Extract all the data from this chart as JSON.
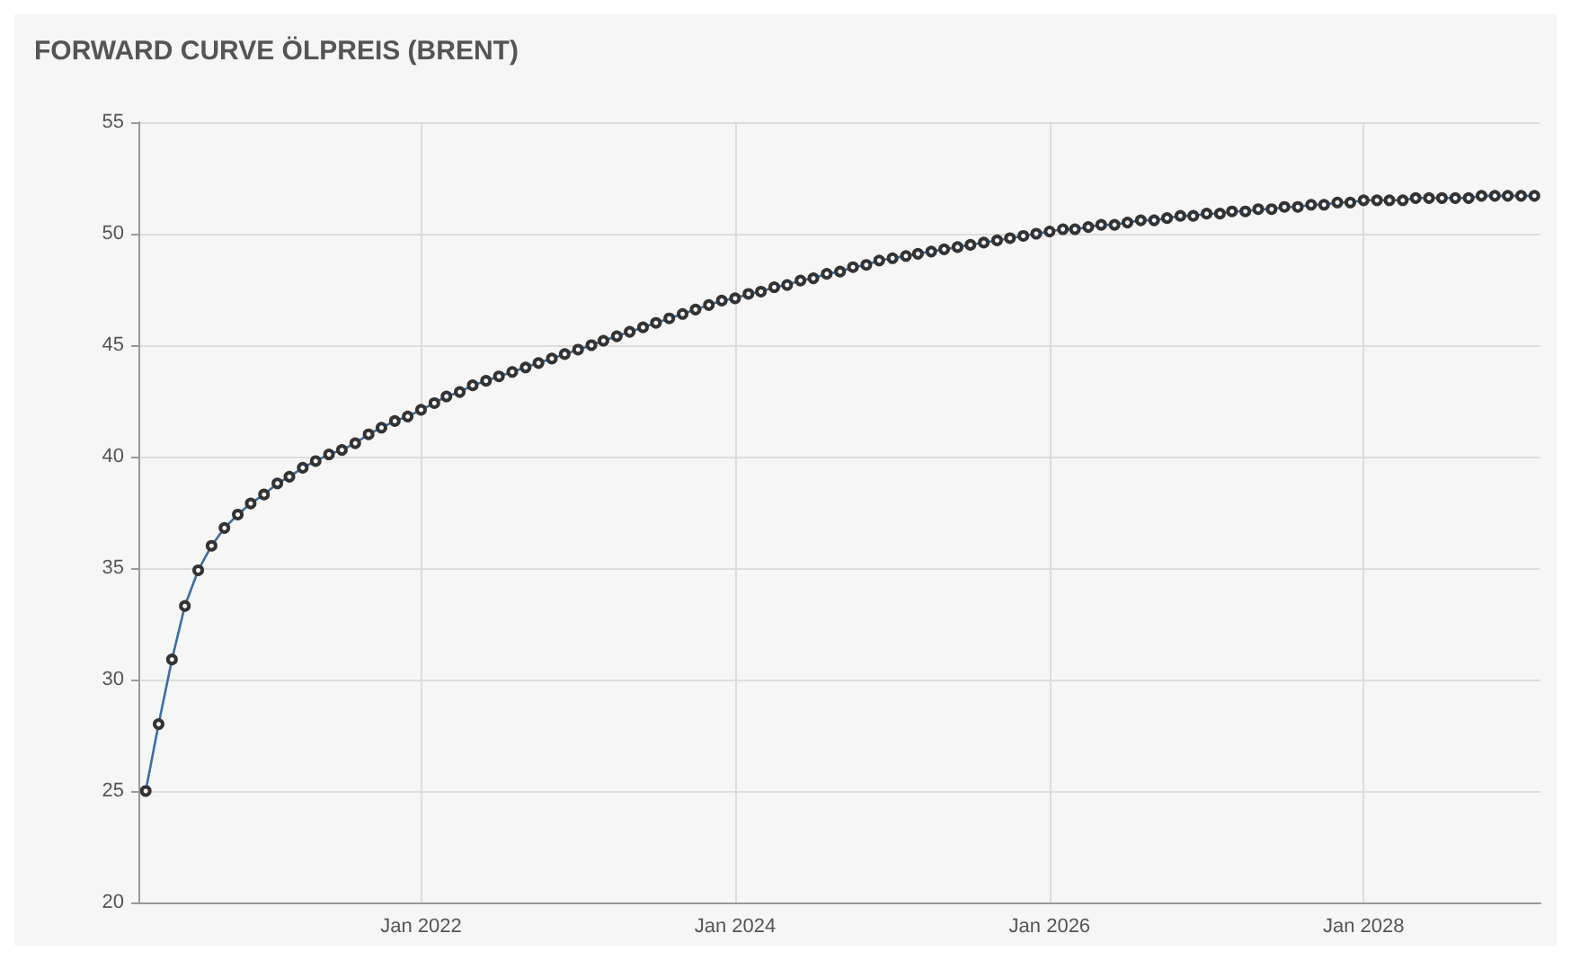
{
  "chart_data": {
    "type": "line",
    "title": "FORWARD CURVE ÖLPREIS (BRENT)",
    "x": [
      "2020-04",
      "2020-05",
      "2020-06",
      "2020-07",
      "2020-08",
      "2020-09",
      "2020-10",
      "2020-11",
      "2020-12",
      "2021-01",
      "2021-02",
      "2021-03",
      "2021-04",
      "2021-05",
      "2021-06",
      "2021-07",
      "2021-08",
      "2021-09",
      "2021-10",
      "2021-11",
      "2021-12",
      "2022-01",
      "2022-02",
      "2022-03",
      "2022-04",
      "2022-05",
      "2022-06",
      "2022-07",
      "2022-08",
      "2022-09",
      "2022-10",
      "2022-11",
      "2022-12",
      "2023-01",
      "2023-02",
      "2023-03",
      "2023-04",
      "2023-05",
      "2023-06",
      "2023-07",
      "2023-08",
      "2023-09",
      "2023-10",
      "2023-11",
      "2023-12",
      "2024-01",
      "2024-02",
      "2024-03",
      "2024-04",
      "2024-05",
      "2024-06",
      "2024-07",
      "2024-08",
      "2024-09",
      "2024-10",
      "2024-11",
      "2024-12",
      "2025-01",
      "2025-02",
      "2025-03",
      "2025-04",
      "2025-05",
      "2025-06",
      "2025-07",
      "2025-08",
      "2025-09",
      "2025-10",
      "2025-11",
      "2025-12",
      "2026-01",
      "2026-02",
      "2026-03",
      "2026-04",
      "2026-05",
      "2026-06",
      "2026-07",
      "2026-08",
      "2026-09",
      "2026-10",
      "2026-11",
      "2026-12",
      "2027-01",
      "2027-02",
      "2027-03",
      "2027-04",
      "2027-05",
      "2027-06",
      "2027-07",
      "2027-08",
      "2027-09",
      "2027-10",
      "2027-11",
      "2027-12",
      "2028-01",
      "2028-02",
      "2028-03",
      "2028-04",
      "2028-05",
      "2028-06",
      "2028-07",
      "2028-08",
      "2028-09",
      "2028-10",
      "2028-11",
      "2028-12",
      "2029-01",
      "2029-02"
    ],
    "series": [
      {
        "color": "#3a6ea5",
        "values": [
          25.0,
          28.0,
          30.9,
          33.3,
          34.9,
          36.0,
          36.8,
          37.4,
          37.9,
          38.3,
          38.8,
          39.1,
          39.5,
          39.8,
          40.1,
          40.3,
          40.6,
          41.0,
          41.3,
          41.6,
          41.8,
          42.1,
          42.4,
          42.7,
          42.9,
          43.2,
          43.4,
          43.6,
          43.8,
          44.0,
          44.2,
          44.4,
          44.6,
          44.8,
          45.0,
          45.2,
          45.4,
          45.6,
          45.8,
          46.0,
          46.2,
          46.4,
          46.6,
          46.8,
          47.0,
          47.1,
          47.3,
          47.4,
          47.6,
          47.7,
          47.9,
          48.0,
          48.2,
          48.3,
          48.5,
          48.6,
          48.8,
          48.9,
          49.0,
          49.1,
          49.2,
          49.3,
          49.4,
          49.5,
          49.6,
          49.7,
          49.8,
          49.9,
          50.0,
          50.1,
          50.2,
          50.2,
          50.3,
          50.4,
          50.4,
          50.5,
          50.6,
          50.6,
          50.7,
          50.8,
          50.8,
          50.9,
          50.9,
          51.0,
          51.0,
          51.1,
          51.1,
          51.2,
          51.2,
          51.3,
          51.3,
          51.4,
          51.4,
          51.5,
          51.5,
          51.5,
          51.5,
          51.6,
          51.6,
          51.6,
          51.6,
          51.6,
          51.7,
          51.7,
          51.7,
          51.7,
          51.7
        ]
      }
    ],
    "xlim": [
      "2020-03-15",
      "2029-02-15"
    ],
    "xticks": [
      {
        "value": "2022-01",
        "label": "Jan 2022"
      },
      {
        "value": "2024-01",
        "label": "Jan 2024"
      },
      {
        "value": "2026-01",
        "label": "Jan 2026"
      },
      {
        "value": "2028-01",
        "label": "Jan 2028"
      }
    ],
    "ylim": [
      20,
      55
    ],
    "yticks": [
      20,
      25,
      30,
      35,
      40,
      45,
      50,
      55
    ],
    "grid": true,
    "marker": "circle",
    "line_style": "solid"
  }
}
